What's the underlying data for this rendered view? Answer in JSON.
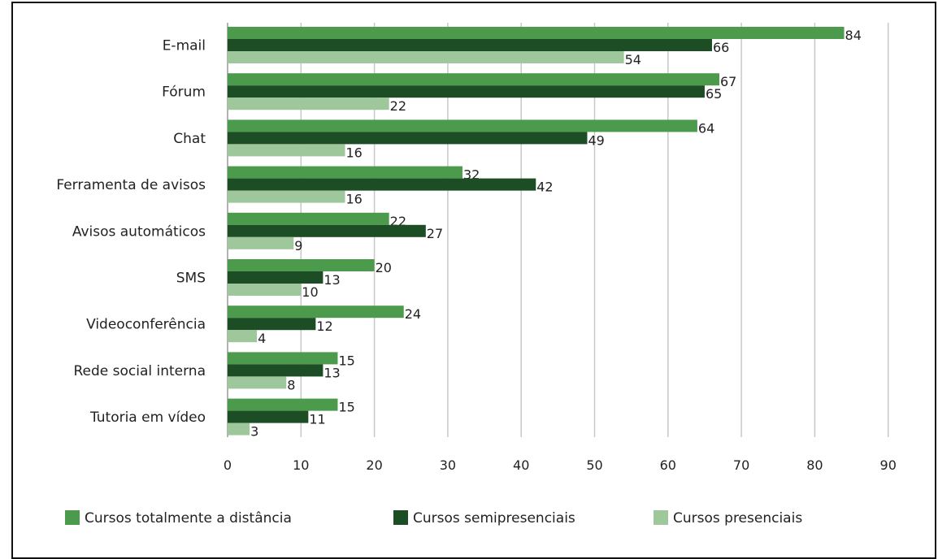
{
  "chart_data": {
    "type": "bar",
    "orientation": "horizontal",
    "categories": [
      "E-mail",
      "Fórum",
      "Chat",
      "Ferramenta de avisos",
      "Avisos automáticos",
      "SMS",
      "Videoconferência",
      "Rede social interna",
      "Tutoria em vídeo"
    ],
    "series": [
      {
        "name": "Cursos totalmente a distância",
        "color": "#4c9a4c",
        "values": [
          84,
          67,
          64,
          32,
          22,
          20,
          24,
          15,
          15
        ]
      },
      {
        "name": "Cursos semipresenciais",
        "color": "#1d4d25",
        "values": [
          66,
          65,
          49,
          42,
          27,
          13,
          12,
          13,
          11
        ]
      },
      {
        "name": "Cursos presenciais",
        "color": "#9ec79c",
        "values": [
          54,
          22,
          16,
          16,
          9,
          10,
          4,
          8,
          3
        ]
      }
    ],
    "xlim": [
      0,
      90
    ],
    "xticks": [
      "0",
      "10",
      "20",
      "30",
      "40",
      "50",
      "60",
      "70",
      "80",
      "90"
    ],
    "grid": true,
    "legend_position": "bottom"
  }
}
